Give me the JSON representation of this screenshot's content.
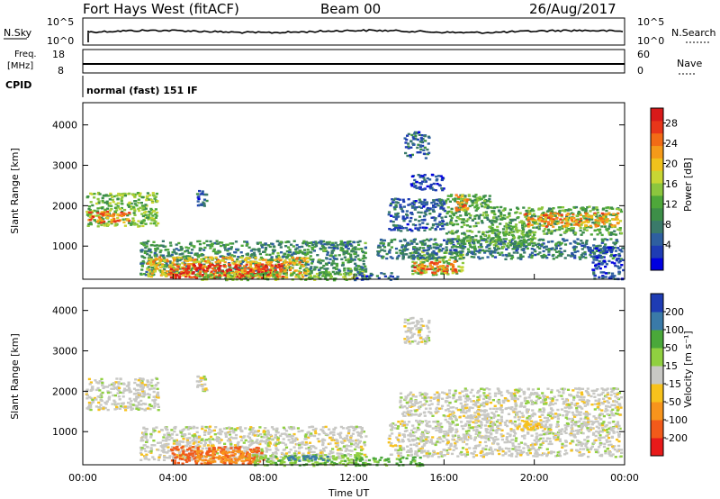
{
  "header": {
    "station": "Fort Hays West (fitACF)",
    "beam": "Beam 00",
    "date": "26/Aug/2017"
  },
  "top_panels": {
    "nsky_label": "N.Sky",
    "nsky_ticks": [
      "10^5",
      "10^0"
    ],
    "nsearch_label": "N.Search",
    "freq_label_line1": "Freq.",
    "freq_label_line2": "[MHz]",
    "freq_ticks": [
      "18",
      "8"
    ],
    "nave_label": "Nave",
    "nave_ticks": [
      "60",
      "0"
    ],
    "cpid_label": "CPID",
    "cpid_text": "normal (fast) 151 IF"
  },
  "chart_data": [
    {
      "type": "heatmap",
      "name": "power",
      "ylabel": "Slant Range [km]",
      "xlabel": "",
      "yticks": [
        "4000",
        "3000",
        "2000",
        "1000"
      ],
      "ylim": [
        180,
        4550
      ],
      "x_range_hours": [
        0,
        24
      ],
      "colorbar": {
        "label": "Power [dB]",
        "ticks": [
          "28",
          "24",
          "20",
          "16",
          "12",
          "8",
          "4"
        ],
        "range": [
          0,
          30
        ]
      },
      "colors": [
        "#0000e0",
        "#1e3cb4",
        "#2e5fa0",
        "#3a7a6a",
        "#3d8f48",
        "#4ea83a",
        "#8cc63e",
        "#c8d634",
        "#f0c21c",
        "#f59a1a",
        "#f26b16",
        "#e8361a",
        "#d81a1a"
      ],
      "regions": [
        {
          "t0": 0.1,
          "t1": 3.3,
          "r0": 1500,
          "r1": 2350,
          "level": 14
        },
        {
          "t0": 0.2,
          "t1": 2.0,
          "r0": 1600,
          "r1": 1900,
          "level": 24
        },
        {
          "t0": 2.5,
          "t1": 12.5,
          "r0": 300,
          "r1": 1150,
          "level": 10
        },
        {
          "t0": 2.8,
          "t1": 10.0,
          "r0": 250,
          "r1": 750,
          "level": 20
        },
        {
          "t0": 3.8,
          "t1": 8.8,
          "r0": 230,
          "r1": 580,
          "level": 27
        },
        {
          "t0": 5.0,
          "t1": 12.5,
          "r0": 180,
          "r1": 380,
          "level": 14
        },
        {
          "t0": 10.0,
          "t1": 12.0,
          "r0": 950,
          "r1": 1150,
          "level": 8
        },
        {
          "t0": 12.0,
          "t1": 14.0,
          "r0": 180,
          "r1": 360,
          "level": 6
        },
        {
          "t0": 14.5,
          "t1": 16.8,
          "r0": 300,
          "r1": 900,
          "level": 14
        },
        {
          "t0": 14.6,
          "t1": 16.5,
          "r0": 320,
          "r1": 650,
          "level": 24
        },
        {
          "t0": 13.0,
          "t1": 23.8,
          "r0": 700,
          "r1": 1200,
          "level": 8
        },
        {
          "t0": 16.0,
          "t1": 20.0,
          "r0": 1000,
          "r1": 1400,
          "level": 12
        },
        {
          "t0": 18.0,
          "t1": 23.8,
          "r0": 1300,
          "r1": 2000,
          "level": 12
        },
        {
          "t0": 19.5,
          "t1": 23.8,
          "r0": 1500,
          "r1": 1850,
          "level": 22
        },
        {
          "t0": 16.0,
          "t1": 18.0,
          "r0": 1500,
          "r1": 2300,
          "level": 12
        },
        {
          "t0": 16.4,
          "t1": 17.0,
          "r0": 1900,
          "r1": 2300,
          "level": 22
        },
        {
          "t0": 13.5,
          "t1": 16.0,
          "r0": 1400,
          "r1": 2200,
          "level": 6
        },
        {
          "t0": 14.2,
          "t1": 15.3,
          "r0": 3200,
          "r1": 3850,
          "level": 6
        },
        {
          "t0": 14.5,
          "t1": 16.0,
          "r0": 2400,
          "r1": 2800,
          "level": 4
        },
        {
          "t0": 5.0,
          "t1": 5.5,
          "r0": 2000,
          "r1": 2400,
          "level": 6
        },
        {
          "t0": 22.5,
          "t1": 23.9,
          "r0": 180,
          "r1": 1000,
          "level": 4
        }
      ]
    },
    {
      "type": "heatmap",
      "name": "velocity",
      "ylabel": "Slant Range [km]",
      "xlabel": "Time UT",
      "yticks": [
        "4000",
        "3000",
        "2000",
        "1000"
      ],
      "ylim": [
        180,
        4550
      ],
      "x_range_hours": [
        0,
        24
      ],
      "xticks": [
        "00:00",
        "04:00",
        "08:00",
        "12:00",
        "16:00",
        "20:00",
        "00:00"
      ],
      "colorbar": {
        "label": "Velocity [m s⁻¹]",
        "ticks": [
          "200",
          "100",
          "50",
          "15",
          "-15",
          "-50",
          "-100",
          "-200"
        ],
        "range": [
          -250,
          250
        ]
      },
      "colors": [
        "#e81a1a",
        "#f25a1a",
        "#f7941c",
        "#f7c21c",
        "#c8c8c4",
        "#90d040",
        "#4aa83a",
        "#3a7aa8",
        "#1e3cb4"
      ],
      "regions": [
        {
          "t0": 0.1,
          "t1": 3.3,
          "r0": 1550,
          "r1": 2350,
          "level": 0
        },
        {
          "t0": 2.5,
          "t1": 12.5,
          "r0": 300,
          "r1": 1150,
          "level": 0
        },
        {
          "t0": 3.8,
          "t1": 8.0,
          "r0": 230,
          "r1": 650,
          "level": -150
        },
        {
          "t0": 5.0,
          "t1": 7.5,
          "r0": 250,
          "r1": 550,
          "level": -80
        },
        {
          "t0": 7.5,
          "t1": 12.5,
          "r0": 180,
          "r1": 450,
          "level": 40
        },
        {
          "t0": 9.0,
          "t1": 10.8,
          "r0": 300,
          "r1": 420,
          "level": 180
        },
        {
          "t0": 12.0,
          "t1": 15.0,
          "r0": 180,
          "r1": 400,
          "level": 60
        },
        {
          "t0": 13.5,
          "t1": 23.8,
          "r0": 400,
          "r1": 1300,
          "level": 0
        },
        {
          "t0": 16.0,
          "t1": 23.8,
          "r0": 1300,
          "r1": 2100,
          "level": 0
        },
        {
          "t0": 19.2,
          "t1": 20.2,
          "r0": 1050,
          "r1": 1250,
          "level": -40
        },
        {
          "t0": 14.2,
          "t1": 15.3,
          "r0": 3200,
          "r1": 3850,
          "level": 0
        },
        {
          "t0": 14.0,
          "t1": 16.0,
          "r0": 1400,
          "r1": 2000,
          "level": 0
        },
        {
          "t0": 5.0,
          "t1": 5.5,
          "r0": 2000,
          "r1": 2400,
          "level": 0
        }
      ]
    }
  ]
}
